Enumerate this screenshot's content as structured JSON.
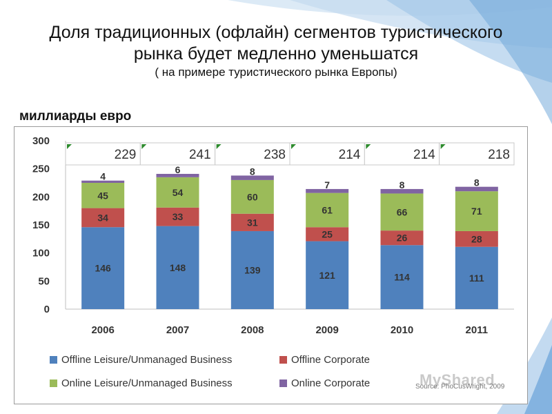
{
  "slide": {
    "title_line1": "Доля традиционных (офлайн) сегментов туристического",
    "title_line2": "рынка будет медленно уменьшатся",
    "subtitle": "( на примере туристического рынка Европы)",
    "unit_label": "миллиарды евро",
    "source": "Source: PhoCusWright, 2009",
    "watermark": "MyShared"
  },
  "chart_data": {
    "type": "bar",
    "stacked": true,
    "categories": [
      "2006",
      "2007",
      "2008",
      "2009",
      "2010",
      "2011"
    ],
    "ylim": [
      0,
      300
    ],
    "yticks": [
      0,
      50,
      100,
      150,
      200,
      250,
      300
    ],
    "series": [
      {
        "name": "Offline Leisure/Unmanaged Business",
        "color": "#4f81bd",
        "values": [
          146,
          148,
          139,
          121,
          114,
          111
        ]
      },
      {
        "name": "Offline Corporate",
        "color": "#c0504d",
        "values": [
          34,
          33,
          31,
          25,
          26,
          28
        ]
      },
      {
        "name": "Online Leisure/Unmanaged Business",
        "color": "#9bbb59",
        "values": [
          45,
          54,
          60,
          61,
          66,
          71
        ]
      },
      {
        "name": "Online Corporate",
        "color": "#8064a2",
        "values": [
          4,
          6,
          8,
          7,
          8,
          8
        ]
      }
    ],
    "totals": [
      229,
      241,
      238,
      214,
      214,
      218
    ],
    "legend_position": "bottom"
  }
}
